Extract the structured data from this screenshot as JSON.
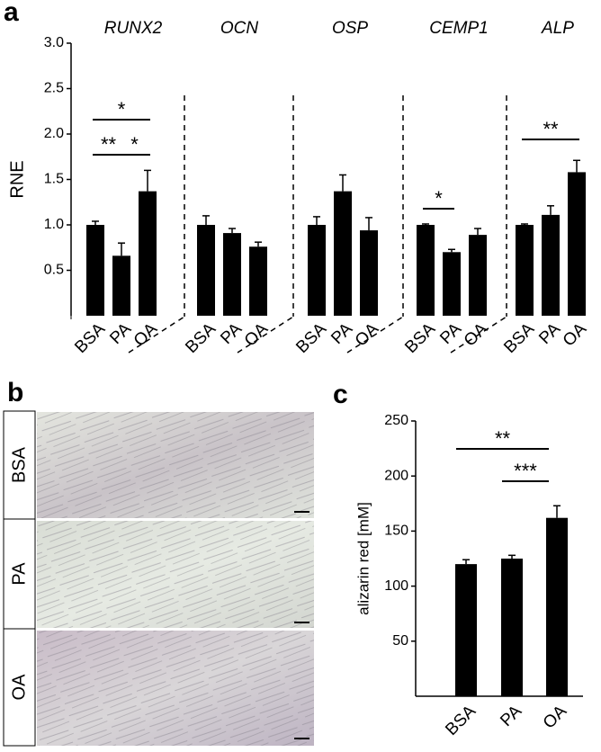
{
  "chart_data": [
    {
      "type": "bar",
      "panel_label": "a",
      "y_label": "RNE",
      "color": "#000000",
      "ylim": [
        0,
        3
      ],
      "yticks": [
        0.5,
        {
          "value": 1,
          "label": "1.0"
        },
        1.5,
        {
          "value": 2,
          "label": "2.0"
        },
        2.5,
        {
          "value": 3,
          "label": "3.0"
        }
      ],
      "groups": [
        {
          "name": "RUNX2",
          "categories": [
            "BSA",
            "PA",
            "OA"
          ],
          "values": [
            1.0,
            0.66,
            1.37
          ],
          "errors": [
            0.04,
            0.14,
            0.23
          ],
          "annotations": [
            "*",
            "**",
            "*"
          ]
        },
        {
          "name": "OCN",
          "categories": [
            "BSA",
            "PA",
            "OA"
          ],
          "values": [
            1.0,
            0.91,
            0.76
          ],
          "errors": [
            0.1,
            0.05,
            0.05
          ],
          "annotations": []
        },
        {
          "name": "OSP",
          "categories": [
            "BSA",
            "PA",
            "OA"
          ],
          "values": [
            1.0,
            1.37,
            0.94
          ],
          "errors": [
            0.09,
            0.18,
            0.14
          ],
          "annotations": []
        },
        {
          "name": "CEMP1",
          "categories": [
            "BSA",
            "PA",
            "OA"
          ],
          "values": [
            1.0,
            0.7,
            0.89
          ],
          "errors": [
            0.01,
            0.03,
            0.07
          ],
          "annotations": [
            "*"
          ]
        },
        {
          "name": "ALP",
          "categories": [
            "BSA",
            "PA",
            "OA"
          ],
          "values": [
            1.0,
            1.11,
            1.58
          ],
          "errors": [
            0.01,
            0.1,
            0.13
          ],
          "annotations": [
            "**"
          ]
        }
      ]
    },
    {
      "type": "bar",
      "panel_label": "c",
      "y_label": "alizarin red [mM]",
      "color": "#000000",
      "categories": [
        "BSA",
        "PA",
        "OA"
      ],
      "values": [
        120,
        125,
        162
      ],
      "errors": [
        4,
        3,
        11
      ],
      "ylim": [
        0,
        250
      ],
      "yticks": [
        50,
        100,
        150,
        200,
        250
      ],
      "annotations": [
        "**",
        "***"
      ]
    }
  ],
  "image_panel": {
    "panel_label": "b",
    "rows": [
      "BSA",
      "PA",
      "OA"
    ]
  }
}
